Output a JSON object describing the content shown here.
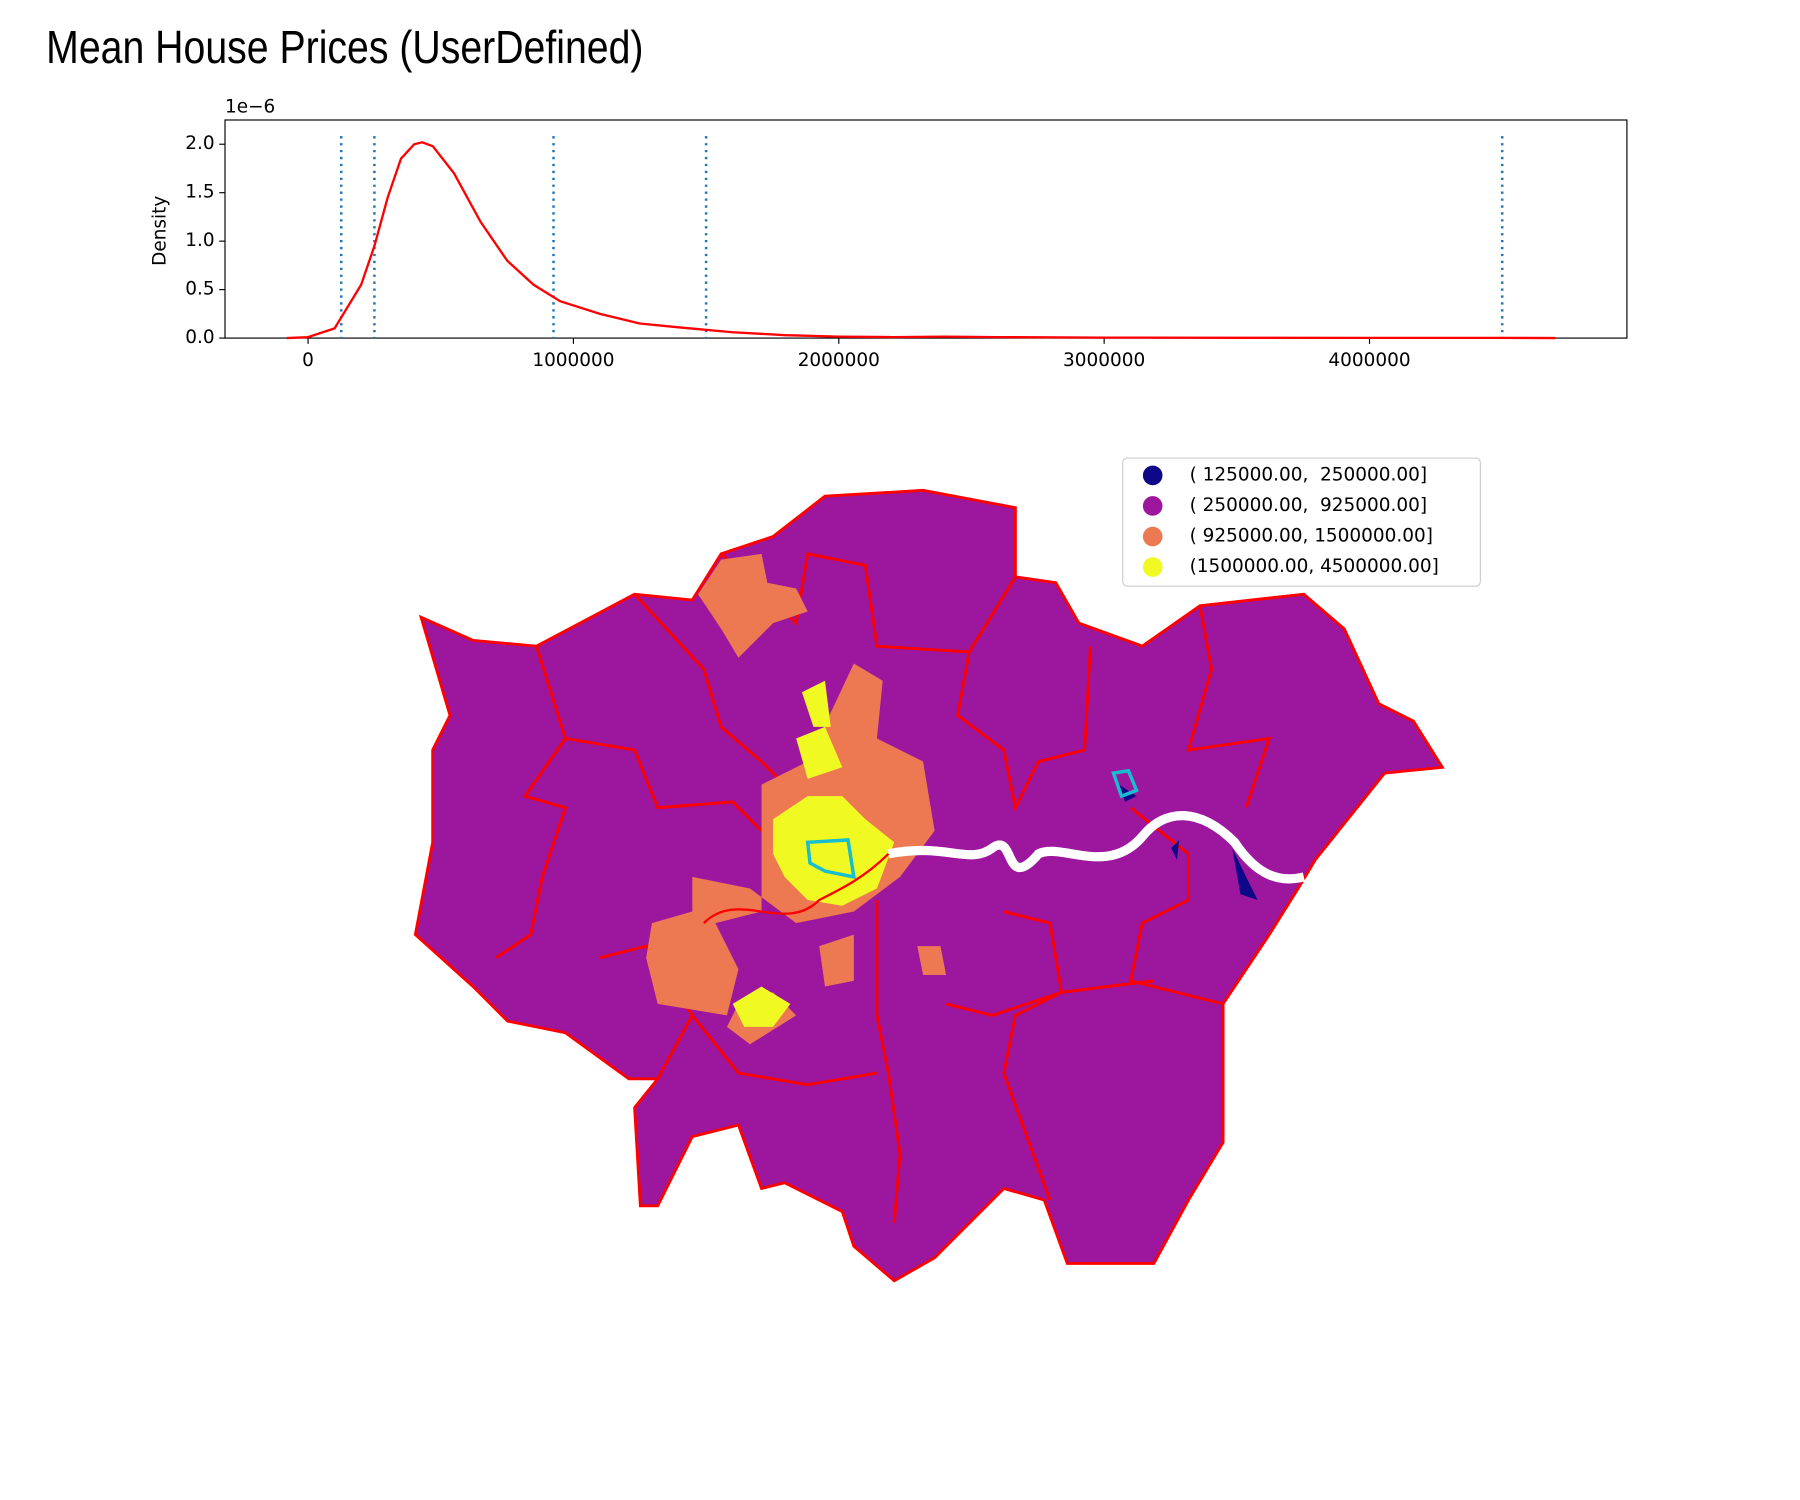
{
  "chart_data": [
    {
      "type": "line",
      "title": "Mean House Prices (UserDefined)",
      "y_label": "Density",
      "y_offset_label": "1e−6",
      "color": "#ff0000",
      "vline_color": "#1f77b4",
      "x": [
        -80000,
        0,
        100000,
        200000,
        250000,
        300000,
        350000,
        400000,
        430000,
        470000,
        550000,
        650000,
        750000,
        850000,
        950000,
        1100000,
        1250000,
        1400000,
        1600000,
        1800000,
        2000000,
        2200000,
        2400000,
        2600000,
        3000000,
        3500000,
        4000000,
        4500000,
        4700000
      ],
      "values": [
        0,
        0.01,
        0.1,
        0.55,
        0.95,
        1.45,
        1.85,
        2.0,
        2.02,
        1.98,
        1.7,
        1.2,
        0.8,
        0.55,
        0.38,
        0.25,
        0.15,
        0.11,
        0.06,
        0.03,
        0.015,
        0.01,
        0.015,
        0.01,
        0.005,
        0.003,
        0.002,
        0.002,
        0
      ],
      "vlines": [
        125000,
        250000,
        925000,
        1500000,
        4500000
      ],
      "xlim": [
        -313000,
        4970000
      ],
      "ylim": [
        0,
        2.25
      ],
      "xticks": [
        0,
        1000000,
        2000000,
        3000000,
        4000000
      ],
      "yticks": [
        {
          "value": 0,
          "label": "0.0"
        },
        {
          "value": 0.5,
          "label": "0.5"
        },
        {
          "value": 1,
          "label": "1.0"
        },
        {
          "value": 1.5,
          "label": "1.5"
        },
        {
          "value": 2,
          "label": "2.0"
        }
      ]
    },
    {
      "type": "map",
      "legend": [
        {
          "name": "( 125000.00,  250000.00]",
          "color": "#0d0887"
        },
        {
          "name": "( 250000.00,  925000.00]",
          "color": "#9c179e"
        },
        {
          "name": "( 925000.00, 1500000.00]",
          "color": "#ed7953"
        },
        {
          "name": "(1500000.00, 4500000.00]",
          "color": "#f0f921"
        }
      ]
    }
  ]
}
